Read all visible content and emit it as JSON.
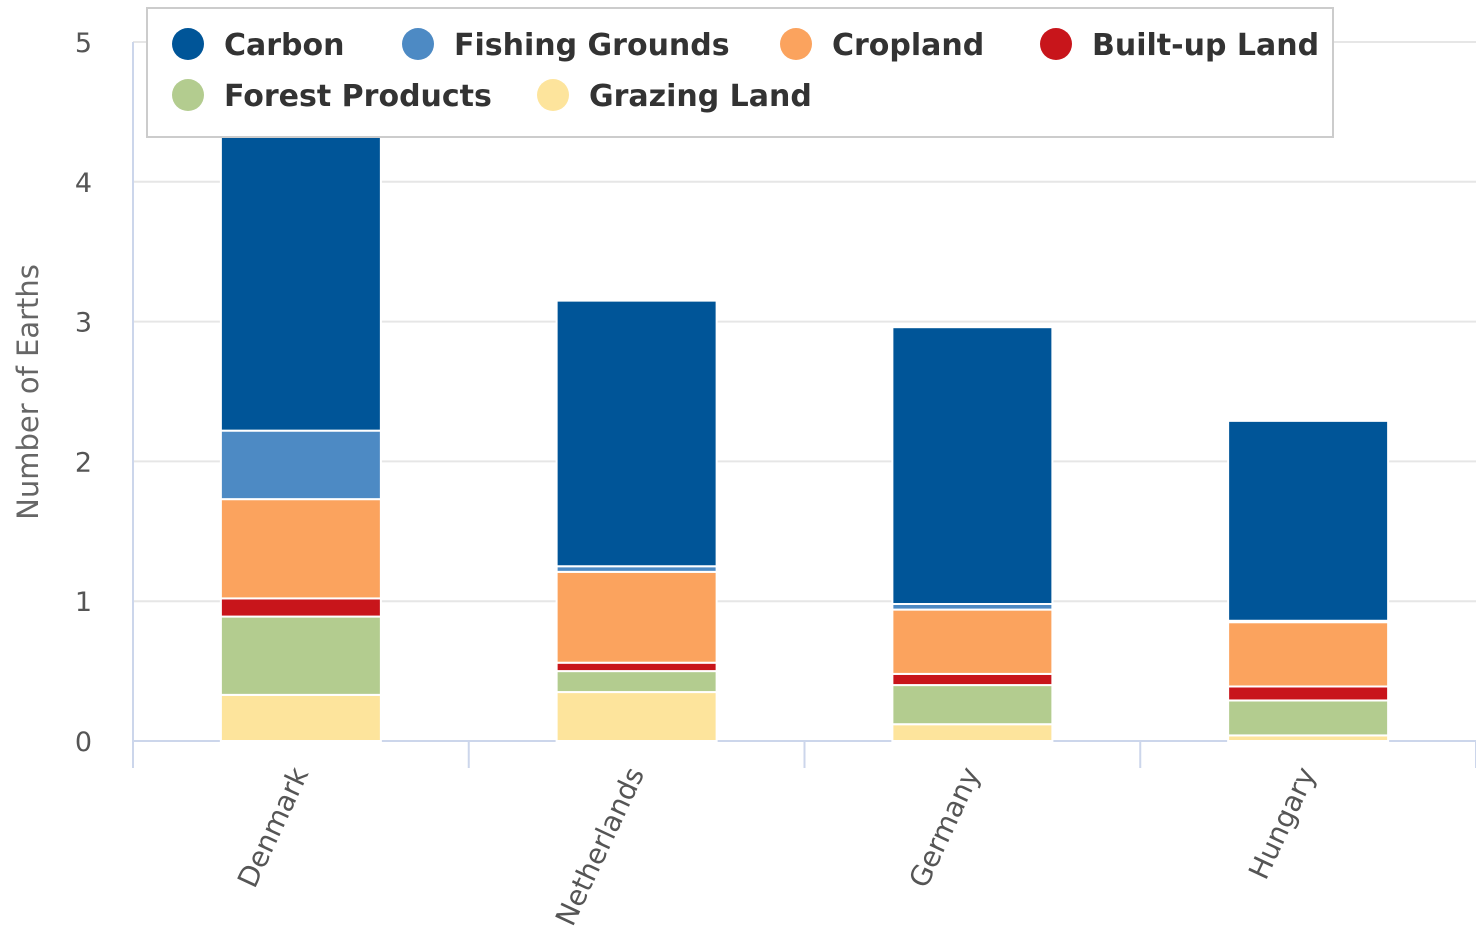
{
  "chart_data": {
    "type": "bar",
    "stacked": true,
    "categories": [
      "Denmark",
      "Netherlands",
      "Germany",
      "Hungary"
    ],
    "ylabel": "Number of Earths",
    "ylim": [
      0,
      5
    ],
    "yticks": [
      0,
      1,
      2,
      3,
      4,
      5
    ],
    "grid": true,
    "legend_position": "top",
    "series": [
      {
        "name": "Grazing Land",
        "color": "#fde49c",
        "values": [
          0.33,
          0.35,
          0.12,
          0.04
        ]
      },
      {
        "name": "Forest Products",
        "color": "#b3cc8f",
        "values": [
          0.56,
          0.15,
          0.28,
          0.25
        ]
      },
      {
        "name": "Built-up Land",
        "color": "#c8151b",
        "values": [
          0.13,
          0.06,
          0.08,
          0.1
        ]
      },
      {
        "name": "Cropland",
        "color": "#fba35e",
        "values": [
          0.71,
          0.65,
          0.46,
          0.46
        ]
      },
      {
        "name": "Fishing Grounds",
        "color": "#4d8ac4",
        "values": [
          0.49,
          0.04,
          0.04,
          0.01
        ]
      },
      {
        "name": "Carbon",
        "color": "#005598",
        "values": [
          2.14,
          1.9,
          1.98,
          1.43
        ]
      }
    ],
    "legend_order": [
      "Carbon",
      "Fishing Grounds",
      "Cropland",
      "Built-up Land",
      "Forest Products",
      "Grazing Land"
    ]
  }
}
